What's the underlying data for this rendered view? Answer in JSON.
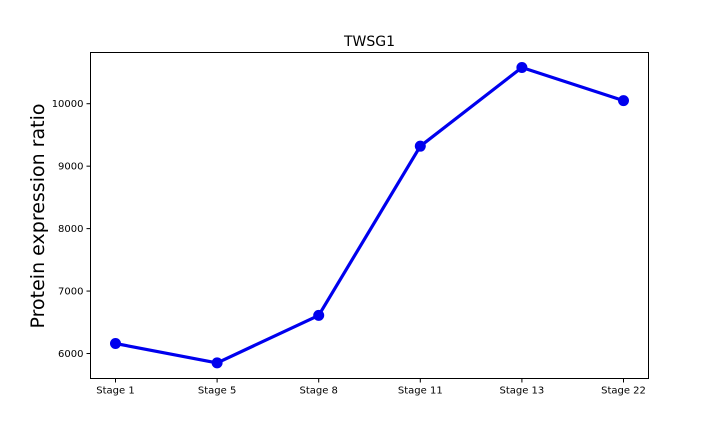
{
  "chart_data": {
    "type": "line",
    "title": "TWSG1",
    "xlabel": "",
    "ylabel": "Protein expression ratio",
    "categories": [
      "Stage 1",
      "Stage 5",
      "Stage 8",
      "Stage 11",
      "Stage 13",
      "Stage 22"
    ],
    "series": [
      {
        "values": [
          6160,
          5850,
          6610,
          9320,
          10580,
          10050
        ],
        "color": "#0000ee"
      }
    ],
    "ylim": [
      5600,
      10820
    ],
    "yticks": [
      6000,
      7000,
      8000,
      9000,
      10000
    ],
    "grid": false,
    "legend": false
  }
}
